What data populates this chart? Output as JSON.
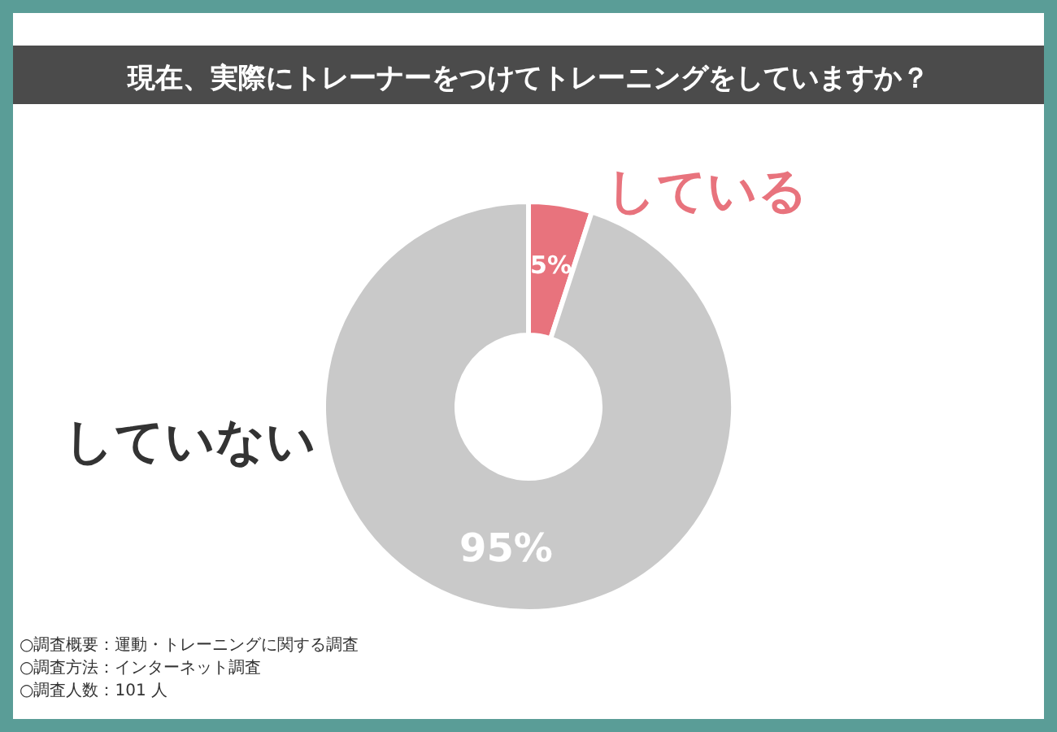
{
  "chart_data": {
    "type": "donut",
    "title": "現在、実際にトレーナーをつけてトレーニングをしていますか？",
    "categories": [
      "している",
      "していない"
    ],
    "values": [
      5,
      95
    ],
    "colors": [
      "#e8737d",
      "#c9c9c9"
    ],
    "value_labels": [
      "5%",
      "95%"
    ],
    "legend": false,
    "annotations": [
      "○調査概要：運動・トレーニングに関する調査",
      "○調査方法：インターネット調査",
      "○調査人数：101 人"
    ]
  }
}
